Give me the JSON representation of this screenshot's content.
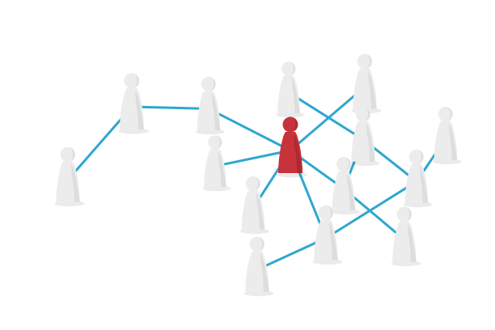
{
  "scene": {
    "background": "#ffffff",
    "link_color": "#2ea7cf",
    "figure_color": "#ececec",
    "figure_shade": "#d7d7d7",
    "highlight_color": "#c8323a",
    "highlight_shade": "#a2262d"
  },
  "figures": [
    {
      "id": "left-end",
      "highlighted": false
    },
    {
      "id": "left-upper",
      "highlighted": false
    },
    {
      "id": "mid-upper",
      "highlighted": false
    },
    {
      "id": "mid-left",
      "highlighted": false
    },
    {
      "id": "center-red",
      "highlighted": true
    },
    {
      "id": "top-a",
      "highlighted": false
    },
    {
      "id": "top-b",
      "highlighted": false
    },
    {
      "id": "right-mid-a",
      "highlighted": false
    },
    {
      "id": "far-right",
      "highlighted": false
    },
    {
      "id": "right-mid-b",
      "highlighted": false
    },
    {
      "id": "center-low-a",
      "highlighted": false
    },
    {
      "id": "lower-left",
      "highlighted": false
    },
    {
      "id": "lower-mid",
      "highlighted": false
    },
    {
      "id": "lower-right",
      "highlighted": false
    },
    {
      "id": "bottom-left",
      "highlighted": false
    }
  ],
  "links": [
    [
      "left-end",
      "left-upper"
    ],
    [
      "left-upper",
      "mid-upper"
    ],
    [
      "mid-upper",
      "center-red"
    ],
    [
      "mid-left",
      "center-red"
    ],
    [
      "center-red",
      "top-b"
    ],
    [
      "center-red",
      "lower-left"
    ],
    [
      "center-red",
      "lower-mid"
    ],
    [
      "center-red",
      "center-low-a"
    ],
    [
      "top-a",
      "right-mid-a"
    ],
    [
      "right-mid-a",
      "right-mid-b"
    ],
    [
      "far-right",
      "right-mid-b"
    ],
    [
      "right-mid-a",
      "center-low-a"
    ],
    [
      "center-low-a",
      "lower-right"
    ],
    [
      "right-mid-b",
      "lower-mid"
    ],
    [
      "lower-mid",
      "bottom-left"
    ]
  ]
}
